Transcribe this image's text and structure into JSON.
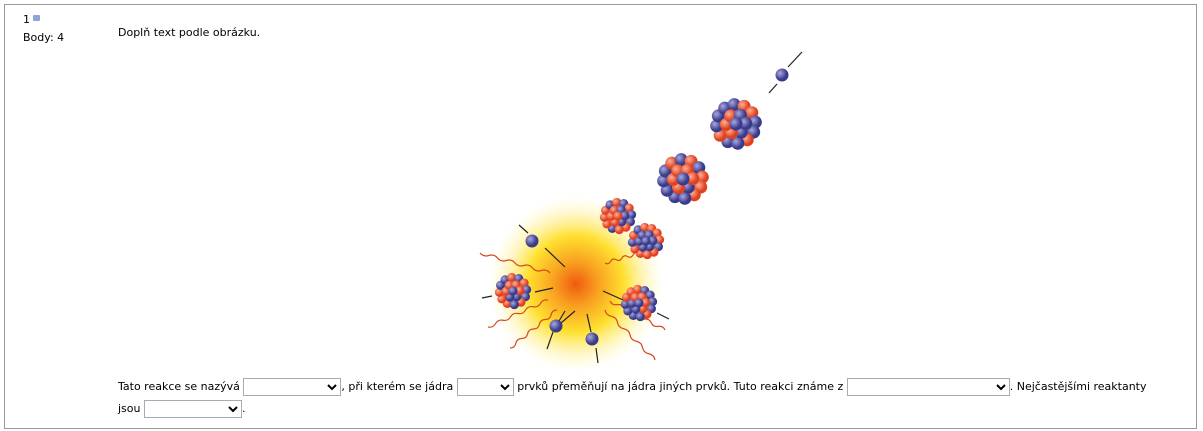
{
  "question": {
    "number": "1",
    "points": "Body: 4",
    "prompt": "Doplň text podle obrázku.",
    "text_parts": [
      "Tato reakce se nazývá",
      ", při kterém se jádra",
      "prvků přeměňují na jádra jiných prvků. Tuto reakci známe z",
      ". Nejčastějšími reaktanty jsou",
      "."
    ]
  }
}
